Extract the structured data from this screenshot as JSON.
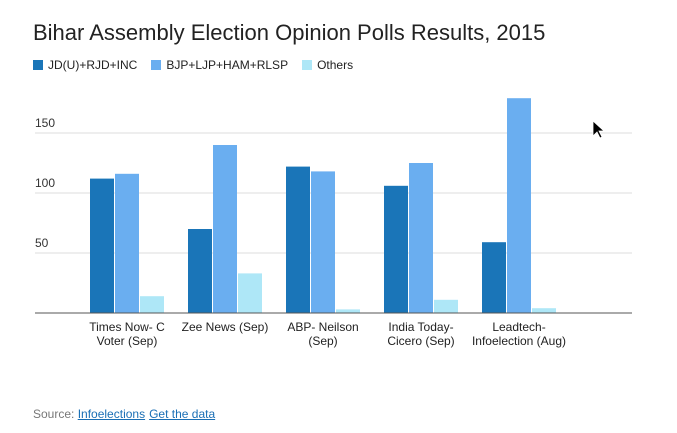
{
  "chart_data": {
    "type": "bar",
    "title": "Bihar Assembly Election Opinion Polls Results, 2015",
    "categories": [
      "Times Now- C Voter (Sep)",
      "Zee News (Sep)",
      "ABP- Neilson (Sep)",
      "India Today-Cicero (Sep)",
      "Leadtech-Infoelection (Aug)"
    ],
    "series": [
      {
        "name": "JD(U)+RJD+INC",
        "color": "#1a75b8",
        "values": [
          112,
          70,
          122,
          106,
          59
        ]
      },
      {
        "name": "BJP+LJP+HAM+RLSP",
        "color": "#6aaef0",
        "values": [
          116,
          140,
          118,
          125,
          179
        ]
      },
      {
        "name": "Others",
        "color": "#aee7f7",
        "values": [
          14,
          33,
          3,
          11,
          4
        ]
      }
    ],
    "ylim": [
      0,
      180
    ],
    "yticks": [
      50,
      100,
      150
    ],
    "grid": true,
    "source_label": "Source:",
    "source_links": [
      "Infoelections",
      "Get the data"
    ]
  }
}
